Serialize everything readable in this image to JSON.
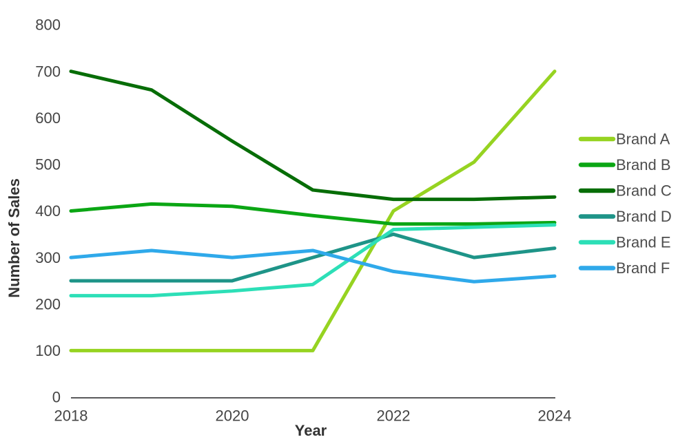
{
  "chart_data": {
    "type": "line",
    "title": "",
    "xlabel": "Year",
    "ylabel": "Number of Sales",
    "x": [
      2018,
      2019,
      2020,
      2021,
      2022,
      2023,
      2024
    ],
    "series": [
      {
        "name": "Brand A",
        "color": "#96D321",
        "values": [
          100,
          100,
          100,
          100,
          400,
          505,
          700
        ]
      },
      {
        "name": "Brand B",
        "color": "#0BA614",
        "values": [
          400,
          415,
          410,
          390,
          372,
          372,
          375
        ]
      },
      {
        "name": "Brand C",
        "color": "#076D07",
        "values": [
          700,
          660,
          550,
          445,
          425,
          425,
          430
        ]
      },
      {
        "name": "Brand D",
        "color": "#1E9488",
        "values": [
          250,
          250,
          250,
          300,
          350,
          300,
          320
        ]
      },
      {
        "name": "Brand E",
        "color": "#2DDFB7",
        "values": [
          218,
          218,
          228,
          242,
          360,
          365,
          370
        ]
      },
      {
        "name": "Brand F",
        "color": "#2FA9EA",
        "values": [
          300,
          315,
          300,
          315,
          270,
          248,
          260
        ]
      }
    ],
    "xlim": [
      2018,
      2024
    ],
    "ylim": [
      0,
      800
    ],
    "yticks": [
      0,
      100,
      200,
      300,
      400,
      500,
      600,
      700,
      800
    ],
    "xticks": [
      2018,
      2020,
      2022,
      2024
    ],
    "grid": false,
    "legend_position": "right"
  },
  "colors": {
    "background": "#FFFFFF",
    "tick_label": "#454545",
    "axis_title": "#333333",
    "legend_text": "#4D4D4D",
    "axis_line": "#58585A"
  }
}
